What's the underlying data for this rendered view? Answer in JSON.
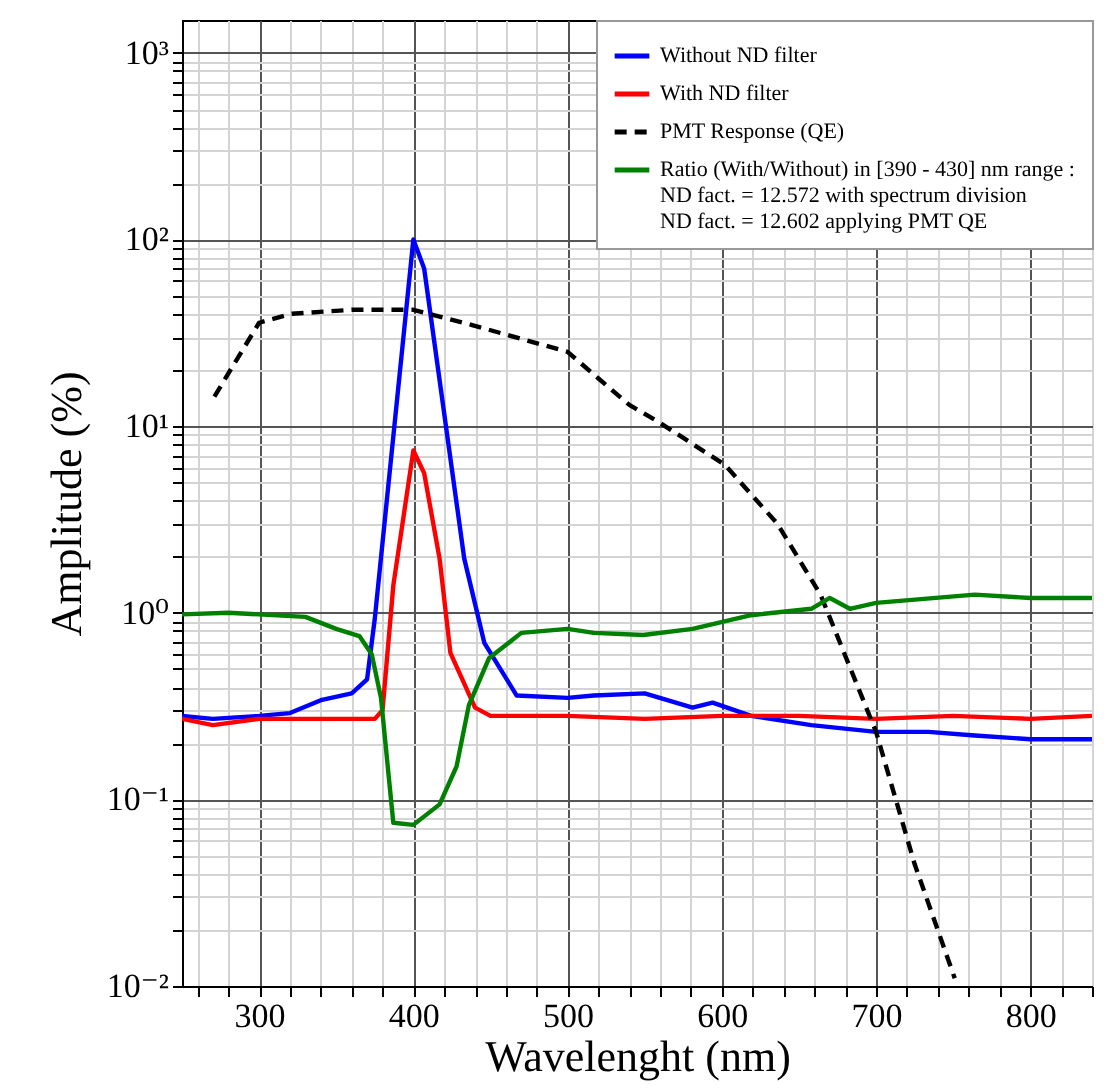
{
  "chart_data": {
    "type": "line",
    "xlabel": "Wavelenght (nm)",
    "ylabel": "Amplitude (%)",
    "log": "y",
    "grid": true,
    "legend": "top right",
    "xlim": [
      250,
      840
    ],
    "ylim": [
      0.01,
      1500
    ],
    "xticks": [
      {
        "value": 260,
        "label": null
      },
      {
        "value": 280,
        "label": null
      },
      300,
      {
        "value": 320,
        "label": null
      },
      {
        "value": 340,
        "label": null
      },
      {
        "value": 360,
        "label": null
      },
      {
        "value": 380,
        "label": null
      },
      400,
      {
        "value": 420,
        "label": null
      },
      {
        "value": 440,
        "label": null
      },
      {
        "value": 460,
        "label": null
      },
      {
        "value": 480,
        "label": null
      },
      500,
      {
        "value": 520,
        "label": null
      },
      {
        "value": 540,
        "label": null
      },
      {
        "value": 560,
        "label": null
      },
      {
        "value": 580,
        "label": null
      },
      600,
      {
        "value": 620,
        "label": null
      },
      {
        "value": 640,
        "label": null
      },
      {
        "value": 660,
        "label": null
      },
      {
        "value": 680,
        "label": null
      },
      700,
      {
        "value": 720,
        "label": null
      },
      {
        "value": 740,
        "label": null
      },
      {
        "value": 760,
        "label": null
      },
      {
        "value": 780,
        "label": null
      },
      800,
      {
        "value": 820,
        "label": null
      },
      {
        "value": 840,
        "label": null
      }
    ],
    "yticks": [
      {
        "value": 0.01,
        "label": "10⁻²"
      },
      {
        "value": 0.02,
        "label": null
      },
      {
        "value": 0.03,
        "label": null
      },
      {
        "value": 0.04,
        "label": null
      },
      {
        "value": 0.05,
        "label": null
      },
      {
        "value": 0.06,
        "label": null
      },
      {
        "value": 0.07,
        "label": null
      },
      {
        "value": 0.08,
        "label": null
      },
      {
        "value": 0.09,
        "label": null
      },
      {
        "value": 0.1,
        "label": "10⁻¹"
      },
      {
        "value": 0.2,
        "label": null
      },
      {
        "value": 0.3,
        "label": null
      },
      {
        "value": 0.4,
        "label": null
      },
      {
        "value": 0.5,
        "label": null
      },
      {
        "value": 0.6,
        "label": null
      },
      {
        "value": 0.7,
        "label": null
      },
      {
        "value": 0.8,
        "label": null
      },
      {
        "value": 0.9,
        "label": null
      },
      {
        "value": 1,
        "label": "10⁰"
      },
      {
        "value": 2,
        "label": null
      },
      {
        "value": 3,
        "label": null
      },
      {
        "value": 4,
        "label": null
      },
      {
        "value": 5,
        "label": null
      },
      {
        "value": 6,
        "label": null
      },
      {
        "value": 7,
        "label": null
      },
      {
        "value": 8,
        "label": null
      },
      {
        "value": 9,
        "label": null
      },
      {
        "value": 10,
        "label": "10¹"
      },
      {
        "value": 20,
        "label": null
      },
      {
        "value": 30,
        "label": null
      },
      {
        "value": 40,
        "label": null
      },
      {
        "value": 50,
        "label": null
      },
      {
        "value": 60,
        "label": null
      },
      {
        "value": 70,
        "label": null
      },
      {
        "value": 80,
        "label": null
      },
      {
        "value": 90,
        "label": null
      },
      {
        "value": 100,
        "label": "10²"
      },
      {
        "value": 200,
        "label": null
      },
      {
        "value": 300,
        "label": null
      },
      {
        "value": 400,
        "label": null
      },
      {
        "value": 500,
        "label": null
      },
      {
        "value": 600,
        "label": null
      },
      {
        "value": 700,
        "label": null
      },
      {
        "value": 800,
        "label": null
      },
      {
        "value": 900,
        "label": null
      },
      {
        "value": 1000,
        "label": "10³"
      }
    ],
    "series": [
      {
        "name": "Without ND filter",
        "color": "#0000ff",
        "line_style": "solid",
        "x": [
          250,
          270,
          300,
          320,
          340,
          360,
          370,
          375,
          400,
          407,
          433,
          446,
          467,
          500,
          517,
          550,
          581,
          594,
          619,
          658,
          700,
          734,
          764,
          800,
          840
        ],
        "values": [
          0.28,
          0.27,
          0.28,
          0.29,
          0.34,
          0.37,
          0.44,
          0.93,
          100,
          70,
          1.95,
          0.69,
          0.36,
          0.35,
          0.36,
          0.37,
          0.31,
          0.33,
          0.28,
          0.25,
          0.23,
          0.23,
          0.22,
          0.21,
          0.21
        ]
      },
      {
        "name": "With ND filter",
        "color": "#ff0000",
        "line_style": "solid",
        "x": [
          250,
          270,
          300,
          340,
          375,
          380,
          387,
          400,
          407,
          417,
          424,
          440,
          450,
          500,
          550,
          600,
          650,
          700,
          750,
          800,
          840
        ],
        "values": [
          0.27,
          0.25,
          0.27,
          0.27,
          0.27,
          0.3,
          1.4,
          7.4,
          5.6,
          1.95,
          0.61,
          0.31,
          0.28,
          0.28,
          0.27,
          0.28,
          0.28,
          0.27,
          0.28,
          0.27,
          0.28
        ]
      },
      {
        "name": "PMT Response (QE)",
        "color": "#000000",
        "line_style": "dashed",
        "x": [
          271,
          300,
          321,
          360,
          400,
          437,
          500,
          520,
          540,
          560,
          602,
          636,
          664,
          700,
          725,
          751
        ],
        "values": [
          14.4,
          35.8,
          40,
          42,
          42,
          35,
          25,
          18,
          13,
          10.4,
          6.2,
          3.0,
          1.25,
          0.23,
          0.045,
          0.011
        ]
      },
      {
        "name": "Ratio (With/Without) in [390 - 430] nm range :\nND fact. = 12.572 with spectrum division\nND fact. = 12.602 applying PMT QE",
        "color": "#008000",
        "line_style": "solid",
        "x": [
          250,
          280,
          330,
          350,
          365,
          373,
          379,
          387,
          400,
          417,
          428,
          436,
          449,
          470,
          500,
          517,
          549,
          581,
          619,
          658,
          670,
          683,
          700,
          764,
          800,
          840
        ],
        "values": [
          0.98,
          1.0,
          0.95,
          0.82,
          0.75,
          0.6,
          0.35,
          0.075,
          0.073,
          0.094,
          0.15,
          0.32,
          0.57,
          0.78,
          0.82,
          0.78,
          0.76,
          0.82,
          0.97,
          1.05,
          1.2,
          1.05,
          1.13,
          1.25,
          1.2,
          1.2
        ]
      }
    ]
  }
}
